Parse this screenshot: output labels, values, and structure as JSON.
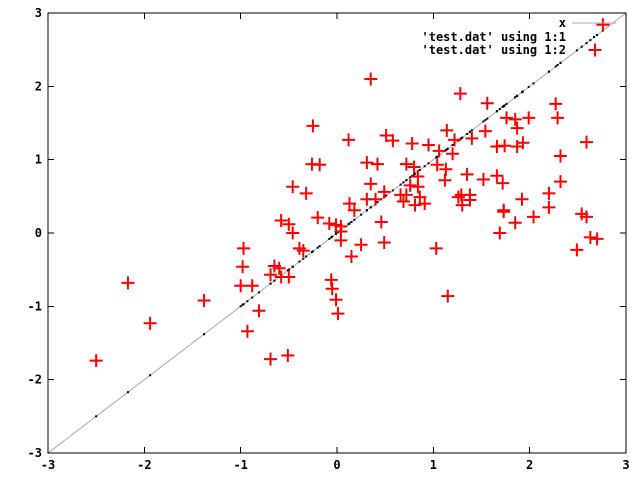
{
  "window": {
    "background": "#ffffff"
  },
  "chart_data": {
    "type": "scatter",
    "title": "",
    "xlabel": "",
    "ylabel": "",
    "x_range": [
      -3,
      3
    ],
    "y_range": [
      -3,
      3
    ],
    "x_ticks": [
      "-3",
      "-2",
      "-1",
      "0",
      "1",
      "2",
      "3"
    ],
    "y_ticks": [
      "-3",
      "-2",
      "-1",
      "0",
      "1",
      "2",
      "3"
    ],
    "grid": false,
    "legend_position": "top-right",
    "colors": {
      "border": "#000000",
      "identity_line": "#a8a8a8",
      "dots": "#000000",
      "plus_markers": "#ff0000",
      "text": "#000000"
    },
    "series": [
      {
        "name": "x",
        "type": "line",
        "style": "solid",
        "color": "#a8a8a8",
        "rule": "y = x",
        "from": [
          -3,
          -3
        ],
        "to": [
          3,
          3
        ]
      },
      {
        "name": "'test.dat' using 1:1",
        "type": "points",
        "marker": "dot",
        "color": "#000000",
        "derivation": "one dot at (x, x) for each x value of the 1:2 series (points lie on the diagonal)"
      },
      {
        "name": "'test.dat' using 1:2",
        "type": "points",
        "marker": "plus",
        "color": "#ff0000",
        "points": [
          [
            0.35,
            2.1
          ],
          [
            -0.25,
            1.46
          ],
          [
            0.12,
            1.27
          ],
          [
            0.51,
            1.33
          ],
          [
            0.58,
            1.26
          ],
          [
            0.78,
            1.22
          ],
          [
            0.95,
            1.2
          ],
          [
            2.76,
            2.84
          ],
          [
            1.28,
            1.9
          ],
          [
            1.56,
            1.77
          ],
          [
            2.27,
            1.76
          ],
          [
            2.29,
            1.57
          ],
          [
            1.76,
            1.57
          ],
          [
            1.85,
            1.55
          ],
          [
            1.99,
            1.57
          ],
          [
            1.14,
            1.4
          ],
          [
            1.22,
            1.27
          ],
          [
            1.4,
            1.29
          ],
          [
            1.54,
            1.39
          ],
          [
            1.87,
            1.43
          ],
          [
            1.06,
            1.12
          ],
          [
            1.2,
            1.08
          ],
          [
            1.66,
            1.18
          ],
          [
            1.74,
            1.19
          ],
          [
            1.87,
            1.18
          ],
          [
            1.93,
            1.23
          ],
          [
            2.59,
            1.24
          ],
          [
            2.32,
            1.05
          ],
          [
            -0.26,
            0.94
          ],
          [
            -0.18,
            0.93
          ],
          [
            0.31,
            0.96
          ],
          [
            0.42,
            0.94
          ],
          [
            0.72,
            0.94
          ],
          [
            0.8,
            0.9
          ],
          [
            -0.46,
            0.63
          ],
          [
            -0.32,
            0.54
          ],
          [
            0.35,
            0.67
          ],
          [
            0.49,
            0.56
          ],
          [
            0.66,
            0.52
          ],
          [
            0.84,
            0.77
          ],
          [
            1.12,
            0.72
          ],
          [
            0.76,
            0.65
          ],
          [
            0.84,
            0.63
          ],
          [
            0.72,
            0.52
          ],
          [
            0.86,
            0.49
          ],
          [
            1.04,
            0.93
          ],
          [
            1.13,
            0.87
          ],
          [
            1.35,
            0.8
          ],
          [
            1.52,
            0.73
          ],
          [
            1.66,
            0.78
          ],
          [
            1.72,
            0.68
          ],
          [
            1.29,
            0.52
          ],
          [
            1.38,
            0.52
          ],
          [
            2.2,
            0.54
          ],
          [
            2.32,
            0.7
          ],
          [
            0.13,
            0.4
          ],
          [
            0.31,
            0.46
          ],
          [
            0.4,
            0.46
          ],
          [
            0.69,
            0.43
          ],
          [
            0.81,
            0.38
          ],
          [
            0.91,
            0.4
          ],
          [
            -0.2,
            0.21
          ],
          [
            -0.58,
            0.17
          ],
          [
            -0.5,
            0.12
          ],
          [
            -0.46,
            0.0
          ],
          [
            -0.08,
            0.13
          ],
          [
            -0.01,
            0.11
          ],
          [
            0.04,
            0.09
          ],
          [
            0.18,
            0.31
          ],
          [
            0.46,
            0.15
          ],
          [
            1.26,
            0.49
          ],
          [
            1.3,
            0.38
          ],
          [
            1.38,
            0.45
          ],
          [
            1.73,
            0.31
          ],
          [
            2.2,
            0.35
          ],
          [
            1.92,
            0.46
          ],
          [
            1.73,
            0.29
          ],
          [
            2.04,
            0.22
          ],
          [
            1.85,
            0.14
          ],
          [
            2.54,
            0.26
          ],
          [
            2.59,
            0.22
          ],
          [
            0.04,
            0.02
          ],
          [
            -0.97,
            -0.21
          ],
          [
            0.04,
            -0.1
          ],
          [
            0.49,
            -0.13
          ],
          [
            0.25,
            -0.16
          ],
          [
            0.15,
            -0.32
          ],
          [
            -0.39,
            -0.21
          ],
          [
            -0.35,
            -0.24
          ],
          [
            -0.98,
            -0.46
          ],
          [
            -0.65,
            -0.45
          ],
          [
            -0.6,
            -0.48
          ],
          [
            1.69,
            0.0
          ],
          [
            2.63,
            -0.06
          ],
          [
            2.7,
            -0.08
          ],
          [
            2.49,
            -0.23
          ],
          [
            1.03,
            -0.21
          ],
          [
            -2.17,
            -0.68
          ],
          [
            -1.38,
            -0.92
          ],
          [
            -1.0,
            -0.72
          ],
          [
            -0.69,
            -0.57
          ],
          [
            -0.58,
            -0.6
          ],
          [
            -0.5,
            -0.6
          ],
          [
            -0.88,
            -0.72
          ],
          [
            -0.06,
            -0.64
          ],
          [
            -0.05,
            -0.76
          ],
          [
            -0.01,
            -0.91
          ],
          [
            1.15,
            -0.86
          ],
          [
            -0.81,
            -1.06
          ],
          [
            -0.93,
            -1.34
          ],
          [
            -0.69,
            -1.72
          ],
          [
            -0.51,
            -1.67
          ],
          [
            0.01,
            -1.1
          ],
          [
            -1.94,
            -1.23
          ],
          [
            -2.5,
            -1.74
          ]
        ]
      }
    ]
  }
}
